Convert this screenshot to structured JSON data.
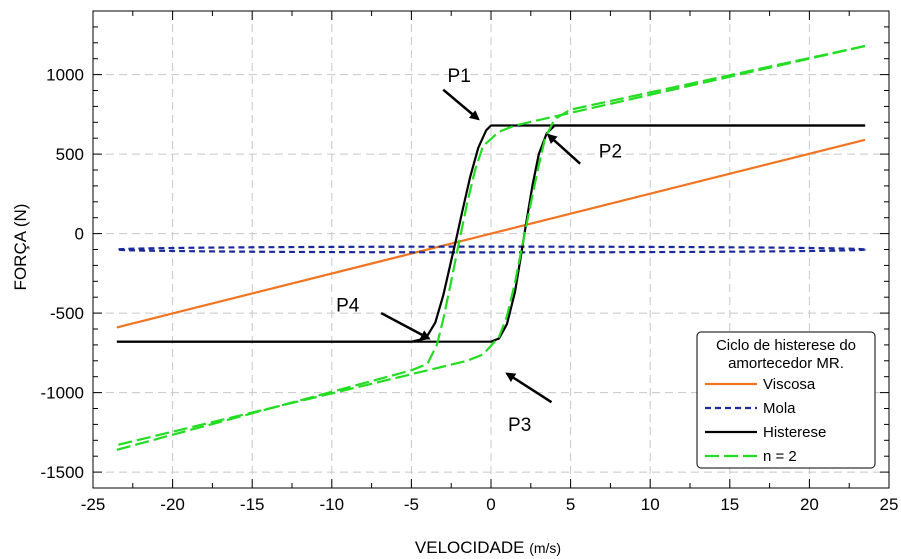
{
  "chart_data": {
    "type": "line",
    "xlabel": "VELOCIDADE",
    "xlabel_unit": "(m/s)",
    "ylabel": "FORÇA (N)",
    "xlim": [
      -25,
      25
    ],
    "ylim": [
      -1600,
      1400
    ],
    "xticks": [
      -25,
      -20,
      -15,
      -10,
      -5,
      0,
      5,
      10,
      15,
      20,
      25
    ],
    "yticks": [
      -1500,
      -1000,
      -500,
      0,
      500,
      1000
    ],
    "grid": true,
    "legend": {
      "title_line1": "Ciclo de histerese do",
      "title_line2": "amortecedor MR.",
      "placement": "bottom-right",
      "entries": [
        "Viscosa",
        "Mola",
        "Histerese",
        "n = 2"
      ]
    },
    "series": [
      {
        "name": "Viscosa",
        "color": "#F07422",
        "style": "solid",
        "x": [
          -23.5,
          23.5
        ],
        "y": [
          -590,
          590
        ]
      },
      {
        "name": "Mola",
        "color": "#1A2A9A",
        "style": "dashed",
        "shape": "ellipse",
        "center": [
          0,
          -100
        ],
        "x_semi_axis": 23.5,
        "y_semi_axis": 18
      },
      {
        "name": "Histerese",
        "color": "#000000",
        "style": "solid",
        "loop_upper_x": [
          -23.5,
          -5,
          -4.1,
          -3.5,
          -3.0,
          -2.5,
          -2.2,
          -1.8,
          -1.3,
          -0.8,
          -0.3,
          0,
          23.5
        ],
        "loop_upper_y": [
          -680,
          -680,
          -660,
          -560,
          -390,
          -170,
          -40,
          140,
          360,
          540,
          650,
          680,
          680
        ],
        "loop_lower_x": [
          23.5,
          4.0,
          3.5,
          3.0,
          2.6,
          2.2,
          1.9,
          1.5,
          1.0,
          0.5,
          0,
          -23.5
        ],
        "loop_lower_y": [
          680,
          680,
          630,
          500,
          300,
          60,
          -130,
          -370,
          -570,
          -660,
          -680,
          -680
        ]
      },
      {
        "name": "n = 2",
        "color": "#22DD22",
        "style": "dashdot",
        "branch1_x": [
          -23.5,
          -5,
          -4,
          -3.4,
          -3.0,
          -2.5,
          -2.0,
          -1.5,
          -1.0,
          -0.5,
          0.5,
          1.5,
          23.5
        ],
        "branch1_y": [
          -1360,
          -860,
          -820,
          -700,
          -540,
          -300,
          -50,
          190,
          400,
          550,
          640,
          680,
          1180
        ],
        "branch2_x": [
          23.5,
          5,
          4,
          3.4,
          3.0,
          2.5,
          2.0,
          1.5,
          1.0,
          0.5,
          -0.5,
          -1.5,
          -23.5
        ],
        "branch2_y": [
          1180,
          780,
          720,
          600,
          430,
          190,
          -60,
          -310,
          -520,
          -650,
          -760,
          -800,
          -1330
        ]
      }
    ],
    "annotations": [
      {
        "label": "P1",
        "text_at": [
          -2,
          955
        ],
        "arrow_from": [
          -3.0,
          905
        ],
        "arrow_to": [
          -0.8,
          720
        ]
      },
      {
        "label": "P2",
        "text_at": [
          7.5,
          480
        ],
        "arrow_from": [
          5.6,
          440
        ],
        "arrow_to": [
          3.6,
          620
        ]
      },
      {
        "label": "P3",
        "text_at": [
          1.8,
          -1240
        ],
        "arrow_from": [
          3.8,
          -1060
        ],
        "arrow_to": [
          1.0,
          -880
        ]
      },
      {
        "label": "P4",
        "text_at": [
          -9,
          -490
        ],
        "arrow_from": [
          -6.9,
          -500
        ],
        "arrow_to": [
          -3.9,
          -660
        ]
      }
    ]
  }
}
